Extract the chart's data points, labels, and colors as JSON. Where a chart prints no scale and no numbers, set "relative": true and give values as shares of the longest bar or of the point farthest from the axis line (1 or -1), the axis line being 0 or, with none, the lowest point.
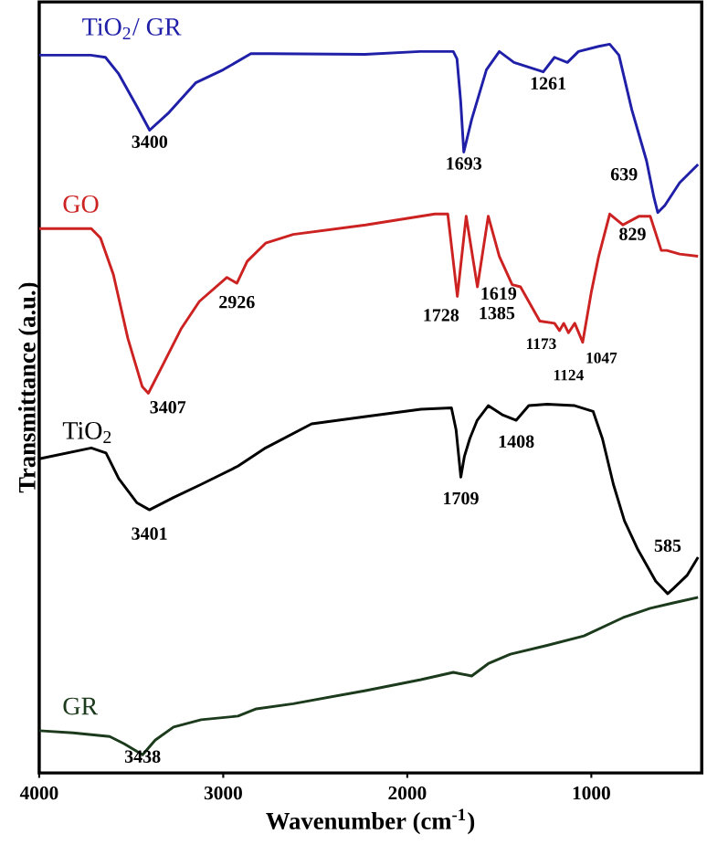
{
  "chart_data": {
    "type": "line",
    "relative": true,
    "xlabel": "Wavenumber (cm$^{-1}$)",
    "ylabel": "Transmittance (a.u.)",
    "xlim": [
      4000,
      400
    ],
    "xticks": [
      4000,
      3000,
      2000,
      1000
    ],
    "tick_labels": "x",
    "grid": false,
    "legend": false,
    "marker": "none",
    "line_style": "solid",
    "series": [
      {
        "name": "TiO$_{2}$/ GR",
        "color": "#1f1fa8",
        "x": [
          4000,
          3720,
          3640,
          3570,
          3470,
          3400,
          3300,
          3150,
          3000,
          2850,
          2750,
          2230,
          1930,
          1750,
          1730,
          1710,
          1693,
          1650,
          1570,
          1500,
          1420,
          1261,
          1200,
          1130,
          1070,
          960,
          900,
          850,
          780,
          700,
          660,
          639,
          600,
          520,
          420
        ],
        "values": [
          0.985,
          0.985,
          0.982,
          0.96,
          0.915,
          0.882,
          0.905,
          0.947,
          0.965,
          0.987,
          0.987,
          0.986,
          0.99,
          0.99,
          0.98,
          0.922,
          0.852,
          0.897,
          0.965,
          0.99,
          0.975,
          0.962,
          0.982,
          0.975,
          0.99,
          0.997,
          1.0,
          0.985,
          0.91,
          0.84,
          0.79,
          0.769,
          0.779,
          0.81,
          0.835
        ]
      },
      {
        "name": "GO",
        "color": "#cc2222",
        "x": [
          4000,
          3717,
          3667,
          3597,
          3518,
          3440,
          3407,
          3330,
          3230,
          3130,
          2980,
          2926,
          2870,
          2770,
          2620,
          2226,
          1850,
          1780,
          1728,
          1680,
          1619,
          1560,
          1500,
          1430,
          1385,
          1280,
          1200,
          1173,
          1150,
          1124,
          1090,
          1047,
          1000,
          960,
          900,
          829,
          740,
          680,
          620,
          590,
          520,
          420
        ],
        "values": [
          0.747,
          0.747,
          0.734,
          0.684,
          0.596,
          0.53,
          0.521,
          0.559,
          0.609,
          0.647,
          0.68,
          0.672,
          0.702,
          0.727,
          0.739,
          0.752,
          0.767,
          0.767,
          0.654,
          0.764,
          0.667,
          0.764,
          0.709,
          0.67,
          0.667,
          0.62,
          0.617,
          0.607,
          0.617,
          0.604,
          0.617,
          0.591,
          0.66,
          0.709,
          0.767,
          0.752,
          0.764,
          0.764,
          0.717,
          0.717,
          0.712,
          0.709
        ]
      },
      {
        "name": "TiO$_{2}$",
        "color": "#000000",
        "x": [
          4000,
          3717,
          3637,
          3568,
          3470,
          3401,
          3270,
          3120,
          2920,
          2770,
          2520,
          2226,
          1926,
          1760,
          1735,
          1709,
          1690,
          1660,
          1620,
          1560,
          1480,
          1408,
          1340,
          1240,
          1090,
          990,
          940,
          880,
          820,
          750,
          650,
          585,
          555,
          480,
          420
        ],
        "values": [
          0.431,
          0.446,
          0.439,
          0.404,
          0.371,
          0.361,
          0.378,
          0.396,
          0.421,
          0.446,
          0.479,
          0.489,
          0.499,
          0.501,
          0.471,
          0.406,
          0.434,
          0.459,
          0.484,
          0.504,
          0.491,
          0.484,
          0.504,
          0.506,
          0.504,
          0.496,
          0.459,
          0.396,
          0.346,
          0.308,
          0.263,
          0.246,
          0.253,
          0.271,
          0.296
        ]
      },
      {
        "name": "GR",
        "color": "#1c3a1c",
        "x": [
          4000,
          3816,
          3617,
          3538,
          3438,
          3370,
          3270,
          3120,
          2920,
          2820,
          2620,
          2226,
          1926,
          1750,
          1650,
          1560,
          1440,
          1240,
          1040,
          829,
          680,
          560,
          420
        ],
        "values": [
          0.058,
          0.055,
          0.05,
          0.04,
          0.025,
          0.045,
          0.063,
          0.073,
          0.078,
          0.088,
          0.095,
          0.113,
          0.128,
          0.138,
          0.133,
          0.15,
          0.163,
          0.175,
          0.188,
          0.213,
          0.226,
          0.233,
          0.241
        ]
      }
    ],
    "annotations": [
      {
        "text": "3400",
        "x": 3400,
        "y": 0.882
      },
      {
        "text": "1693",
        "x": 1693,
        "y": 0.852
      },
      {
        "text": "1261",
        "x": 1261,
        "y": 0.962
      },
      {
        "text": "639",
        "x": 639,
        "y": 0.769
      },
      {
        "text": "3407",
        "x": 3407,
        "y": 0.521
      },
      {
        "text": "2926",
        "x": 2926,
        "y": 0.672
      },
      {
        "text": "1728",
        "x": 1728,
        "y": 0.654
      },
      {
        "text": "1619",
        "x": 1619,
        "y": 0.667
      },
      {
        "text": "1385",
        "x": 1385,
        "y": 0.667
      },
      {
        "text": "1173",
        "x": 1173,
        "y": 0.607
      },
      {
        "text": "1124",
        "x": 1124,
        "y": 0.604
      },
      {
        "text": "1047",
        "x": 1047,
        "y": 0.591
      },
      {
        "text": "829",
        "x": 829,
        "y": 0.752
      },
      {
        "text": "3401",
        "x": 3401,
        "y": 0.361
      },
      {
        "text": "1709",
        "x": 1709,
        "y": 0.406
      },
      {
        "text": "1408",
        "x": 1408,
        "y": 0.484
      },
      {
        "text": "585",
        "x": 585,
        "y": 0.246
      },
      {
        "text": "3438",
        "x": 3438,
        "y": 0.025
      }
    ]
  }
}
